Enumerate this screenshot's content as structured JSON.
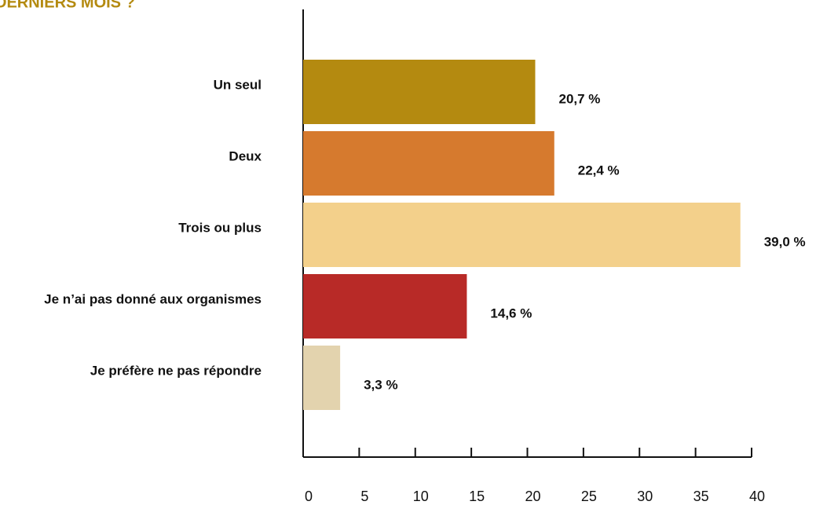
{
  "chart_data": {
    "type": "bar",
    "orientation": "horizontal",
    "title": "DERNIERS MOIS ?",
    "categories": [
      "Un seul",
      "Deux",
      "Trois ou plus",
      "Je n’ai pas donné aux organismes",
      "Je préfère ne pas répondre"
    ],
    "values": [
      20.7,
      22.4,
      39.0,
      14.6,
      3.3
    ],
    "value_labels": [
      "20,7 %",
      "22,4 %",
      "39,0 %",
      "14,6 %",
      "3,3 %"
    ],
    "colors": [
      "#b48a10",
      "#d67a2e",
      "#f3d08b",
      "#b82a27",
      "#e3d3ae"
    ],
    "xlim": [
      0,
      40
    ],
    "xticks": [
      0,
      5,
      10,
      15,
      20,
      25,
      30,
      35,
      40
    ],
    "grid": false
  }
}
